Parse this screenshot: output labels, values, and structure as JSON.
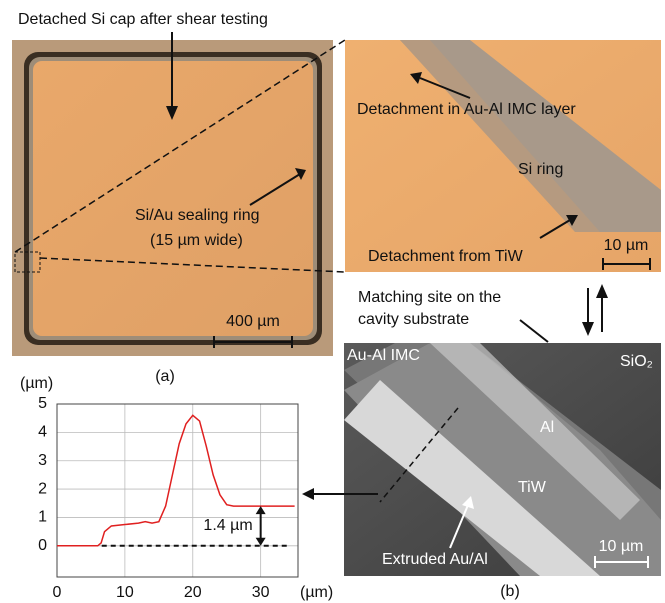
{
  "panel_a": {
    "caption": "Detached Si cap after shear testing",
    "ring_label": "Si/Au sealing ring",
    "ring_width": "(15 µm wide)",
    "scale_bar": "400 µm",
    "label": "(a)"
  },
  "zoom": {
    "imc_label": "Detachment in Au-Al IMC layer",
    "si_ring": "Si ring",
    "tiw_label": "Detachment from TiW",
    "scale_bar": "10 µm"
  },
  "panel_b": {
    "matching_line1": "Matching site on the",
    "matching_line2": "cavity substrate",
    "imc": "Au-Al IMC",
    "sio2": "SiO₂",
    "al": "Al",
    "tiw": "TiW",
    "extruded": "Extruded Au/Al",
    "scale_bar": "10 µm",
    "label": "(b)"
  },
  "chart_data": {
    "type": "line",
    "x": [
      0,
      6,
      6.5,
      7,
      8,
      10,
      12,
      13,
      14,
      15,
      16,
      17,
      18,
      19,
      20,
      21,
      22,
      23,
      24,
      25,
      26,
      35
    ],
    "series": [
      {
        "color": "#e02020",
        "values": [
          0,
          0,
          0.1,
          0.5,
          0.7,
          0.75,
          0.8,
          0.85,
          0.8,
          0.85,
          1.4,
          2.5,
          3.6,
          4.3,
          4.6,
          4.4,
          3.5,
          2.5,
          1.8,
          1.45,
          1.4,
          1.4
        ]
      }
    ],
    "xlim": [
      0,
      35.5
    ],
    "ylim": [
      -1.1,
      5
    ],
    "xticks": [
      0,
      10,
      20,
      30
    ],
    "yticks": [
      0,
      1,
      2,
      3,
      4,
      5
    ],
    "x_unit": "(µm)",
    "y_unit": "(µm)",
    "grid": true,
    "reference_y": 0,
    "annotation": {
      "text": "1.4 µm",
      "value": 1.4
    }
  }
}
